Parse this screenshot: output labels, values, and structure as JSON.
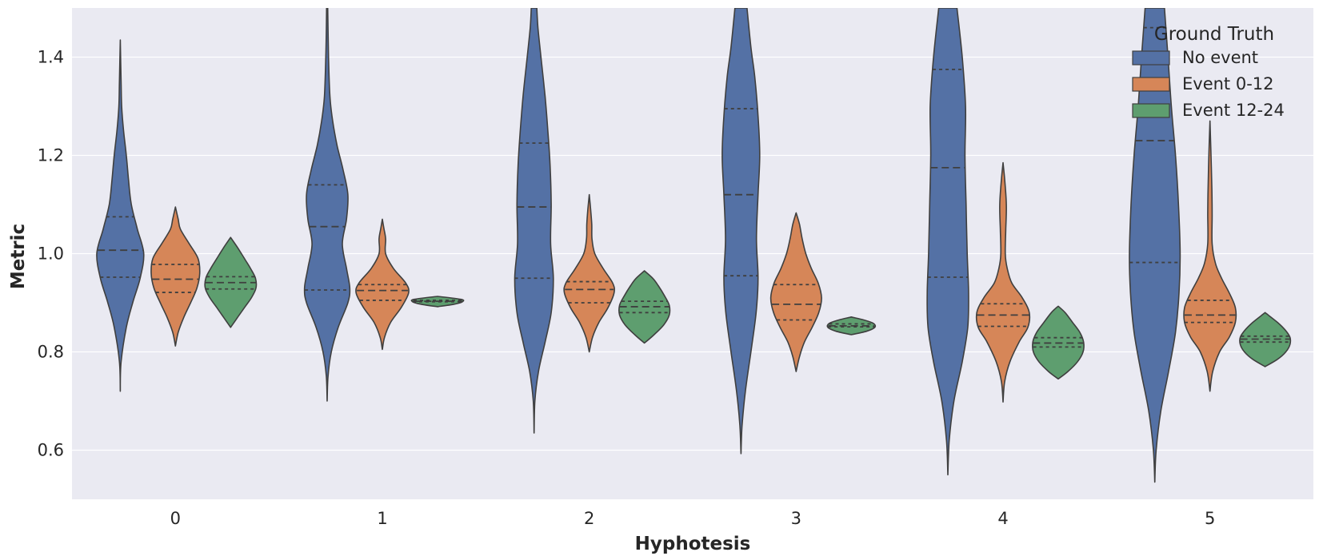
{
  "chart_data": {
    "type": "violin",
    "xlabel": "Hyphotesis",
    "ylabel": "Metric",
    "categories": [
      "0",
      "1",
      "2",
      "3",
      "4",
      "5"
    ],
    "ylim": [
      0.5,
      1.5
    ],
    "yticks": [
      0.6,
      0.8,
      1.0,
      1.2,
      1.4
    ],
    "ytick_labels": [
      "0.6",
      "0.8",
      "1.0",
      "1.2",
      "1.4"
    ],
    "grid": true,
    "background": "#eaeaf2",
    "legend": {
      "title": "Ground Truth",
      "placement": "top-right",
      "entries": [
        "No event",
        "Event 0-12",
        "Event 12-24"
      ]
    },
    "series": [
      {
        "name": "No event",
        "color": "#5471a5",
        "violins": [
          {
            "min": 0.72,
            "max": 1.435,
            "q1": 0.952,
            "median": 1.007,
            "q3": 1.075,
            "profile": [
              [
                0.72,
                0.0
              ],
              [
                0.78,
                0.03
              ],
              [
                0.85,
                0.22
              ],
              [
                0.9,
                0.45
              ],
              [
                0.95,
                0.72
              ],
              [
                1.0,
                0.85
              ],
              [
                1.05,
                0.62
              ],
              [
                1.1,
                0.4
              ],
              [
                1.15,
                0.3
              ],
              [
                1.2,
                0.22
              ],
              [
                1.25,
                0.12
              ],
              [
                1.3,
                0.05
              ],
              [
                1.35,
                0.03
              ],
              [
                1.435,
                0.0
              ]
            ]
          },
          {
            "min": 0.7,
            "max": 1.5,
            "q1": 0.926,
            "median": 1.055,
            "q3": 1.14,
            "profile": [
              [
                0.7,
                0.0
              ],
              [
                0.75,
                0.03
              ],
              [
                0.8,
                0.15
              ],
              [
                0.85,
                0.4
              ],
              [
                0.9,
                0.75
              ],
              [
                0.93,
                0.82
              ],
              [
                0.97,
                0.7
              ],
              [
                1.02,
                0.55
              ],
              [
                1.07,
                0.7
              ],
              [
                1.12,
                0.75
              ],
              [
                1.17,
                0.58
              ],
              [
                1.22,
                0.36
              ],
              [
                1.27,
                0.2
              ],
              [
                1.32,
                0.1
              ],
              [
                1.4,
                0.05
              ],
              [
                1.5,
                0.02
              ]
            ]
          },
          {
            "min": 0.635,
            "max": 1.5,
            "q1": 0.95,
            "median": 1.095,
            "q3": 1.225,
            "profile": [
              [
                0.635,
                0.0
              ],
              [
                0.7,
                0.03
              ],
              [
                0.76,
                0.16
              ],
              [
                0.82,
                0.4
              ],
              [
                0.88,
                0.62
              ],
              [
                0.95,
                0.7
              ],
              [
                1.02,
                0.6
              ],
              [
                1.1,
                0.62
              ],
              [
                1.18,
                0.58
              ],
              [
                1.25,
                0.5
              ],
              [
                1.32,
                0.4
              ],
              [
                1.4,
                0.25
              ],
              [
                1.46,
                0.14
              ],
              [
                1.5,
                0.1
              ]
            ]
          },
          {
            "min": 0.593,
            "max": 1.5,
            "q1": 0.955,
            "median": 1.12,
            "q3": 1.295,
            "profile": [
              [
                0.593,
                0.0
              ],
              [
                0.65,
                0.04
              ],
              [
                0.72,
                0.16
              ],
              [
                0.8,
                0.36
              ],
              [
                0.88,
                0.55
              ],
              [
                0.95,
                0.62
              ],
              [
                1.03,
                0.56
              ],
              [
                1.12,
                0.62
              ],
              [
                1.2,
                0.68
              ],
              [
                1.28,
                0.62
              ],
              [
                1.36,
                0.5
              ],
              [
                1.42,
                0.36
              ],
              [
                1.5,
                0.22
              ]
            ]
          },
          {
            "min": 0.55,
            "max": 1.5,
            "q1": 0.952,
            "median": 1.175,
            "q3": 1.375,
            "profile": [
              [
                0.55,
                0.0
              ],
              [
                0.62,
                0.05
              ],
              [
                0.7,
                0.22
              ],
              [
                0.78,
                0.52
              ],
              [
                0.85,
                0.72
              ],
              [
                0.92,
                0.75
              ],
              [
                1.0,
                0.7
              ],
              [
                1.1,
                0.66
              ],
              [
                1.2,
                0.62
              ],
              [
                1.3,
                0.64
              ],
              [
                1.4,
                0.52
              ],
              [
                1.5,
                0.33
              ]
            ]
          },
          {
            "min": 0.535,
            "max": 1.5,
            "q1": 0.982,
            "median": 1.23,
            "q3": 1.46,
            "profile": [
              [
                0.535,
                0.0
              ],
              [
                0.6,
                0.05
              ],
              [
                0.68,
                0.22
              ],
              [
                0.76,
                0.5
              ],
              [
                0.84,
                0.75
              ],
              [
                0.92,
                0.88
              ],
              [
                1.0,
                0.92
              ],
              [
                1.1,
                0.86
              ],
              [
                1.2,
                0.75
              ],
              [
                1.3,
                0.6
              ],
              [
                1.4,
                0.48
              ],
              [
                1.5,
                0.35
              ]
            ]
          }
        ]
      },
      {
        "name": "Event 0-12",
        "color": "#d68658",
        "violins": [
          {
            "min": 0.812,
            "max": 1.095,
            "q1": 0.921,
            "median": 0.948,
            "q3": 0.978,
            "profile": [
              [
                0.812,
                0.0
              ],
              [
                0.84,
                0.1
              ],
              [
                0.87,
                0.3
              ],
              [
                0.9,
                0.55
              ],
              [
                0.93,
                0.78
              ],
              [
                0.96,
                0.88
              ],
              [
                0.99,
                0.82
              ],
              [
                1.02,
                0.5
              ],
              [
                1.05,
                0.18
              ],
              [
                1.07,
                0.1
              ],
              [
                1.095,
                0.0
              ]
            ]
          },
          {
            "min": 0.805,
            "max": 1.07,
            "q1": 0.905,
            "median": 0.925,
            "q3": 0.937,
            "profile": [
              [
                0.805,
                0.0
              ],
              [
                0.83,
                0.08
              ],
              [
                0.86,
                0.3
              ],
              [
                0.89,
                0.68
              ],
              [
                0.92,
                0.95
              ],
              [
                0.94,
                0.85
              ],
              [
                0.97,
                0.4
              ],
              [
                1.0,
                0.12
              ],
              [
                1.03,
                0.12
              ],
              [
                1.05,
                0.06
              ],
              [
                1.07,
                0.0
              ]
            ]
          },
          {
            "min": 0.8,
            "max": 1.12,
            "q1": 0.9,
            "median": 0.927,
            "q3": 0.943,
            "profile": [
              [
                0.8,
                0.0
              ],
              [
                0.83,
                0.12
              ],
              [
                0.86,
                0.35
              ],
              [
                0.89,
                0.68
              ],
              [
                0.92,
                0.9
              ],
              [
                0.94,
                0.85
              ],
              [
                0.97,
                0.5
              ],
              [
                1.0,
                0.2
              ],
              [
                1.03,
                0.1
              ],
              [
                1.06,
                0.09
              ],
              [
                1.09,
                0.05
              ],
              [
                1.12,
                0.0
              ]
            ]
          },
          {
            "min": 0.76,
            "max": 1.083,
            "q1": 0.865,
            "median": 0.897,
            "q3": 0.937,
            "profile": [
              [
                0.76,
                0.0
              ],
              [
                0.79,
                0.12
              ],
              [
                0.82,
                0.3
              ],
              [
                0.85,
                0.58
              ],
              [
                0.88,
                0.82
              ],
              [
                0.91,
                0.92
              ],
              [
                0.94,
                0.8
              ],
              [
                0.97,
                0.55
              ],
              [
                1.0,
                0.35
              ],
              [
                1.03,
                0.22
              ],
              [
                1.06,
                0.12
              ],
              [
                1.083,
                0.0
              ]
            ]
          },
          {
            "min": 0.698,
            "max": 1.185,
            "q1": 0.852,
            "median": 0.875,
            "q3": 0.898,
            "profile": [
              [
                0.698,
                0.0
              ],
              [
                0.74,
                0.06
              ],
              [
                0.78,
                0.25
              ],
              [
                0.82,
                0.58
              ],
              [
                0.85,
                0.9
              ],
              [
                0.88,
                0.95
              ],
              [
                0.91,
                0.7
              ],
              [
                0.94,
                0.32
              ],
              [
                0.97,
                0.15
              ],
              [
                1.0,
                0.08
              ],
              [
                1.05,
                0.1
              ],
              [
                1.1,
                0.12
              ],
              [
                1.15,
                0.06
              ],
              [
                1.185,
                0.0
              ]
            ]
          },
          {
            "min": 0.72,
            "max": 1.27,
            "q1": 0.86,
            "median": 0.875,
            "q3": 0.905,
            "profile": [
              [
                0.72,
                0.0
              ],
              [
                0.76,
                0.1
              ],
              [
                0.8,
                0.35
              ],
              [
                0.83,
                0.7
              ],
              [
                0.86,
                0.92
              ],
              [
                0.89,
                0.92
              ],
              [
                0.92,
                0.7
              ],
              [
                0.95,
                0.42
              ],
              [
                0.98,
                0.2
              ],
              [
                1.02,
                0.08
              ],
              [
                1.08,
                0.08
              ],
              [
                1.13,
                0.07
              ],
              [
                1.2,
                0.04
              ],
              [
                1.27,
                0.0
              ]
            ]
          }
        ]
      },
      {
        "name": "Event 12-24",
        "color": "#5e9e6f",
        "violins": [
          {
            "min": 0.85,
            "max": 1.033,
            "q1": 0.928,
            "median": 0.941,
            "q3": 0.953,
            "profile": [
              [
                0.85,
                0.0
              ],
              [
                0.87,
                0.25
              ],
              [
                0.89,
                0.5
              ],
              [
                0.91,
                0.75
              ],
              [
                0.93,
                0.92
              ],
              [
                0.95,
                0.9
              ],
              [
                0.97,
                0.72
              ],
              [
                0.99,
                0.5
              ],
              [
                1.01,
                0.28
              ],
              [
                1.033,
                0.0
              ]
            ]
          },
          {
            "min": 0.892,
            "max": 0.913,
            "q1": 0.902,
            "median": 0.903,
            "q3": 0.905,
            "profile": [
              [
                0.892,
                0.0
              ],
              [
                0.897,
                0.6
              ],
              [
                0.902,
                0.9
              ],
              [
                0.907,
                0.85
              ],
              [
                0.913,
                0.0
              ]
            ]
          },
          {
            "min": 0.818,
            "max": 0.965,
            "q1": 0.88,
            "median": 0.892,
            "q3": 0.903,
            "profile": [
              [
                0.818,
                0.0
              ],
              [
                0.835,
                0.35
              ],
              [
                0.855,
                0.7
              ],
              [
                0.875,
                0.9
              ],
              [
                0.895,
                0.9
              ],
              [
                0.915,
                0.72
              ],
              [
                0.935,
                0.5
              ],
              [
                0.95,
                0.3
              ],
              [
                0.965,
                0.0
              ]
            ]
          },
          {
            "min": 0.835,
            "max": 0.871,
            "q1": 0.851,
            "median": 0.853,
            "q3": 0.857,
            "profile": [
              [
                0.835,
                0.0
              ],
              [
                0.842,
                0.55
              ],
              [
                0.85,
                0.85
              ],
              [
                0.858,
                0.8
              ],
              [
                0.865,
                0.45
              ],
              [
                0.871,
                0.0
              ]
            ]
          },
          {
            "min": 0.745,
            "max": 0.893,
            "q1": 0.81,
            "median": 0.818,
            "q3": 0.829,
            "profile": [
              [
                0.745,
                0.0
              ],
              [
                0.76,
                0.35
              ],
              [
                0.78,
                0.7
              ],
              [
                0.8,
                0.9
              ],
              [
                0.82,
                0.92
              ],
              [
                0.84,
                0.78
              ],
              [
                0.86,
                0.52
              ],
              [
                0.88,
                0.25
              ],
              [
                0.893,
                0.0
              ]
            ]
          },
          {
            "min": 0.77,
            "max": 0.88,
            "q1": 0.82,
            "median": 0.826,
            "q3": 0.832,
            "profile": [
              [
                0.77,
                0.0
              ],
              [
                0.785,
                0.45
              ],
              [
                0.8,
                0.75
              ],
              [
                0.815,
                0.9
              ],
              [
                0.83,
                0.9
              ],
              [
                0.845,
                0.72
              ],
              [
                0.86,
                0.45
              ],
              [
                0.88,
                0.0
              ]
            ]
          }
        ]
      }
    ]
  }
}
